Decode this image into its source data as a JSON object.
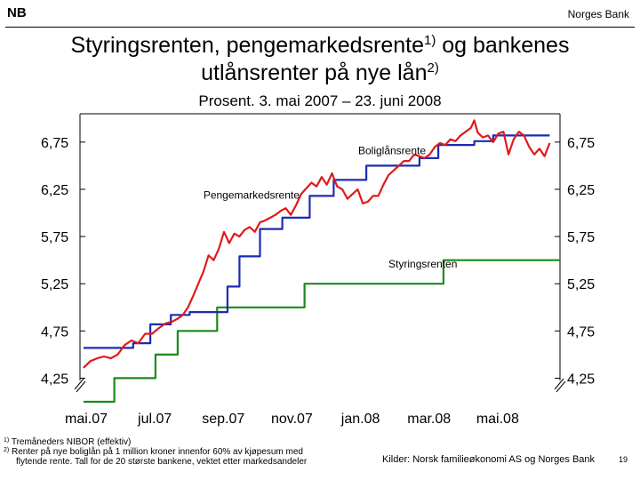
{
  "header": {
    "logo_text": "NB",
    "bank_name": "Norges Bank"
  },
  "title": {
    "part1": "Styringsrenten, pengemarkedsrente",
    "sup1": "1)",
    "part2": " og bankenes",
    "line2": "utlånsrenter på nye lån",
    "sup2": "2)"
  },
  "subtitle": "Prosent. 3. mai 2007 – 23. juni 2008",
  "footnotes": [
    {
      "mark": "1)",
      "text": "Tremåneders NIBOR (effektiv)"
    },
    {
      "mark": "2)",
      "text": "Renter på nye boliglån på 1 million kroner innenfor 60% av kjøpesum med",
      "cont": "flytende rente. Tall for de 20 største bankene, vektet etter markedsandeler"
    }
  ],
  "source": "Kilder: Norsk familieøkonomi AS og Norges Bank",
  "page_number": "19",
  "chart_data": {
    "type": "line",
    "x_range": [
      0,
      14
    ],
    "x_unit": "months since 1 May 2007",
    "ylim": [
      4.0,
      7.05
    ],
    "yticks": [
      4.25,
      4.75,
      5.25,
      5.75,
      6.25,
      6.75
    ],
    "ytick_labels": [
      "4,25",
      "4,75",
      "5,25",
      "5,75",
      "6,25",
      "6,75"
    ],
    "xticks": [
      0,
      2,
      4,
      6,
      8,
      10,
      12
    ],
    "xtick_labels": [
      "mai.07",
      "jul.07",
      "sep.07",
      "nov.07",
      "jan.08",
      "mar.08",
      "mai.08"
    ],
    "series": [
      {
        "name": "Styringsrenten",
        "color": "#1a8a1a",
        "step": true,
        "points": [
          [
            0.1,
            4.0
          ],
          [
            1.0,
            4.0
          ],
          [
            1.0,
            4.25
          ],
          [
            2.2,
            4.25
          ],
          [
            2.2,
            4.5
          ],
          [
            2.85,
            4.5
          ],
          [
            2.85,
            4.75
          ],
          [
            4.0,
            4.75
          ],
          [
            4.0,
            5.0
          ],
          [
            6.55,
            5.0
          ],
          [
            6.55,
            5.25
          ],
          [
            10.6,
            5.25
          ],
          [
            10.6,
            5.5
          ],
          [
            14.0,
            5.5
          ]
        ]
      },
      {
        "name": "Boliglånsrente",
        "color": "#1c2bb4",
        "step": true,
        "points": [
          [
            0.1,
            4.57
          ],
          [
            1.55,
            4.57
          ],
          [
            1.55,
            4.62
          ],
          [
            2.05,
            4.62
          ],
          [
            2.05,
            4.82
          ],
          [
            2.65,
            4.82
          ],
          [
            2.65,
            4.92
          ],
          [
            3.2,
            4.92
          ],
          [
            3.2,
            4.95
          ],
          [
            4.3,
            4.95
          ],
          [
            4.3,
            5.22
          ],
          [
            4.65,
            5.22
          ],
          [
            4.65,
            5.54
          ],
          [
            5.25,
            5.54
          ],
          [
            5.25,
            5.83
          ],
          [
            5.9,
            5.83
          ],
          [
            5.9,
            5.95
          ],
          [
            6.7,
            5.95
          ],
          [
            6.7,
            6.18
          ],
          [
            7.4,
            6.18
          ],
          [
            7.4,
            6.35
          ],
          [
            8.35,
            6.35
          ],
          [
            8.35,
            6.5
          ],
          [
            9.9,
            6.5
          ],
          [
            9.9,
            6.58
          ],
          [
            10.45,
            6.58
          ],
          [
            10.45,
            6.72
          ],
          [
            11.5,
            6.72
          ],
          [
            11.5,
            6.76
          ],
          [
            12.05,
            6.76
          ],
          [
            12.05,
            6.82
          ],
          [
            13.7,
            6.82
          ]
        ]
      },
      {
        "name": "Pengemarkedsrente",
        "color": "#e01a1a",
        "step": false,
        "points": [
          [
            0.1,
            4.36
          ],
          [
            0.3,
            4.43
          ],
          [
            0.5,
            4.46
          ],
          [
            0.7,
            4.48
          ],
          [
            0.9,
            4.46
          ],
          [
            1.1,
            4.5
          ],
          [
            1.3,
            4.6
          ],
          [
            1.5,
            4.65
          ],
          [
            1.7,
            4.62
          ],
          [
            1.9,
            4.72
          ],
          [
            2.1,
            4.72
          ],
          [
            2.3,
            4.78
          ],
          [
            2.5,
            4.83
          ],
          [
            2.7,
            4.85
          ],
          [
            2.85,
            4.88
          ],
          [
            3.0,
            4.92
          ],
          [
            3.15,
            5.0
          ],
          [
            3.3,
            5.12
          ],
          [
            3.45,
            5.25
          ],
          [
            3.6,
            5.38
          ],
          [
            3.75,
            5.55
          ],
          [
            3.9,
            5.5
          ],
          [
            4.05,
            5.62
          ],
          [
            4.2,
            5.8
          ],
          [
            4.35,
            5.68
          ],
          [
            4.5,
            5.78
          ],
          [
            4.65,
            5.75
          ],
          [
            4.8,
            5.82
          ],
          [
            4.95,
            5.85
          ],
          [
            5.1,
            5.8
          ],
          [
            5.25,
            5.9
          ],
          [
            5.4,
            5.92
          ],
          [
            5.55,
            5.95
          ],
          [
            5.7,
            5.98
          ],
          [
            5.85,
            6.02
          ],
          [
            6.0,
            6.05
          ],
          [
            6.15,
            5.98
          ],
          [
            6.3,
            6.08
          ],
          [
            6.45,
            6.2
          ],
          [
            6.6,
            6.26
          ],
          [
            6.75,
            6.32
          ],
          [
            6.9,
            6.28
          ],
          [
            7.05,
            6.38
          ],
          [
            7.2,
            6.3
          ],
          [
            7.35,
            6.42
          ],
          [
            7.5,
            6.28
          ],
          [
            7.65,
            6.25
          ],
          [
            7.8,
            6.15
          ],
          [
            7.95,
            6.2
          ],
          [
            8.1,
            6.25
          ],
          [
            8.25,
            6.1
          ],
          [
            8.4,
            6.12
          ],
          [
            8.55,
            6.18
          ],
          [
            8.7,
            6.18
          ],
          [
            8.85,
            6.3
          ],
          [
            9.0,
            6.4
          ],
          [
            9.15,
            6.45
          ],
          [
            9.3,
            6.5
          ],
          [
            9.45,
            6.55
          ],
          [
            9.6,
            6.55
          ],
          [
            9.75,
            6.62
          ],
          [
            9.9,
            6.6
          ],
          [
            10.05,
            6.58
          ],
          [
            10.2,
            6.62
          ],
          [
            10.35,
            6.7
          ],
          [
            10.5,
            6.74
          ],
          [
            10.65,
            6.72
          ],
          [
            10.8,
            6.78
          ],
          [
            10.95,
            6.76
          ],
          [
            11.1,
            6.82
          ],
          [
            11.25,
            6.86
          ],
          [
            11.4,
            6.9
          ],
          [
            11.5,
            6.98
          ],
          [
            11.6,
            6.85
          ],
          [
            11.75,
            6.8
          ],
          [
            11.9,
            6.82
          ],
          [
            12.05,
            6.75
          ],
          [
            12.2,
            6.84
          ],
          [
            12.35,
            6.86
          ],
          [
            12.5,
            6.62
          ],
          [
            12.65,
            6.78
          ],
          [
            12.8,
            6.86
          ],
          [
            12.95,
            6.82
          ],
          [
            13.1,
            6.7
          ],
          [
            13.25,
            6.62
          ],
          [
            13.4,
            6.68
          ],
          [
            13.55,
            6.6
          ],
          [
            13.7,
            6.74
          ]
        ]
      }
    ],
    "annotations": [
      {
        "text": "Boliglånsrente",
        "x": 9.1,
        "y": 6.62
      },
      {
        "text": "Pengemarkedsrente",
        "x": 5.0,
        "y": 6.15
      },
      {
        "text": "Styringsrenten",
        "x": 10.0,
        "y": 5.42
      }
    ],
    "grid": false
  }
}
